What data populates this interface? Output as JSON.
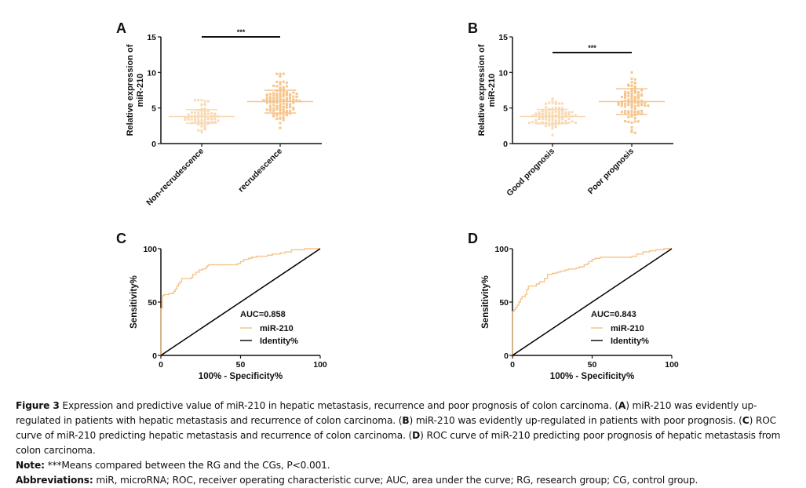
{
  "chart_data": [
    {
      "panel": "A",
      "type": "scatter",
      "subtype": "dot-plot",
      "ylabel": "Relative expression of miR-210",
      "ylim": [
        0,
        15
      ],
      "yticks": [
        0,
        5,
        10,
        15
      ],
      "categories": [
        "Non-recrudescence",
        "recrudescence"
      ],
      "series": [
        {
          "name": "Non-recrudescence",
          "mean": 3.8,
          "sd": 0.95,
          "min": 1.6,
          "max": 6.1,
          "n": 70,
          "color": "#f9d9b2"
        },
        {
          "name": "recrudescence",
          "mean": 5.9,
          "sd": 1.6,
          "min": 2.2,
          "max": 9.8,
          "n": 110,
          "color": "#f7c48a"
        }
      ],
      "significance": "***",
      "significance_y": 15
    },
    {
      "panel": "B",
      "type": "scatter",
      "subtype": "dot-plot",
      "ylabel": "Relative expression of miR-210",
      "ylim": [
        0,
        15
      ],
      "yticks": [
        0,
        5,
        10,
        15
      ],
      "categories": [
        "Good prognosis",
        "Poor prognosis"
      ],
      "series": [
        {
          "name": "Good prognosis",
          "mean": 3.8,
          "sd": 1.0,
          "min": 1.2,
          "max": 6.3,
          "n": 90,
          "color": "#f9d9b2"
        },
        {
          "name": "Poor prognosis",
          "mean": 5.9,
          "sd": 1.8,
          "min": 1.5,
          "max": 10.0,
          "n": 90,
          "color": "#f7c48a"
        }
      ],
      "significance": "***",
      "significance_y": 12.8
    },
    {
      "panel": "C",
      "type": "line",
      "subtype": "roc",
      "xlabel": "100% - Specificity%",
      "ylabel": "Sensitivity%",
      "xlim": [
        0,
        100
      ],
      "ylim": [
        0,
        100
      ],
      "xticks": [
        0,
        50,
        100
      ],
      "yticks": [
        0,
        50,
        100
      ],
      "auc_label": "AUC=0.858",
      "legend": [
        "miR-210",
        "Identity%"
      ],
      "legend_position": "bottom-right",
      "series": [
        {
          "name": "miR-210",
          "color": "#f7c48a",
          "x": [
            0,
            0,
            1,
            1,
            2,
            3,
            5,
            7,
            8,
            9,
            10,
            11,
            12,
            13,
            15,
            17,
            19,
            20,
            21,
            22,
            24,
            26,
            28,
            29,
            30,
            35,
            40,
            45,
            47,
            48,
            50,
            52,
            55,
            57,
            60,
            63,
            67,
            70,
            75,
            78,
            82,
            86,
            90,
            95,
            100
          ],
          "y": [
            0,
            44,
            44,
            56,
            57,
            57,
            58,
            58,
            60,
            62,
            65,
            67,
            69,
            72,
            72,
            72,
            73,
            76,
            76,
            78,
            80,
            81,
            82,
            84,
            85,
            85,
            85,
            85,
            85,
            86,
            88,
            90,
            91,
            92,
            93,
            93,
            94,
            95,
            96,
            97,
            99,
            99,
            100,
            100,
            100
          ]
        },
        {
          "name": "Identity%",
          "color": "#000000",
          "x": [
            0,
            100
          ],
          "y": [
            0,
            100
          ]
        }
      ]
    },
    {
      "panel": "D",
      "type": "line",
      "subtype": "roc",
      "xlabel": "100% - Specificity%",
      "ylabel": "Sensitivity%",
      "xlim": [
        0,
        100
      ],
      "ylim": [
        0,
        100
      ],
      "xticks": [
        0,
        50,
        100
      ],
      "yticks": [
        0,
        50,
        100
      ],
      "auc_label": "AUC=0.843",
      "legend": [
        "miR-210",
        "Identity%"
      ],
      "legend_position": "bottom-right",
      "series": [
        {
          "name": "miR-210",
          "color": "#f7c48a",
          "x": [
            0,
            0,
            1,
            2,
            3,
            4,
            5,
            6,
            7,
            8,
            9,
            10,
            12,
            14,
            15,
            17,
            19,
            20,
            22,
            25,
            28,
            30,
            33,
            35,
            38,
            40,
            42,
            45,
            47,
            48,
            50,
            52,
            55,
            60,
            65,
            70,
            75,
            78,
            82,
            86,
            90,
            95,
            100
          ],
          "y": [
            0,
            41,
            43,
            45,
            47,
            50,
            53,
            55,
            55,
            57,
            62,
            65,
            65,
            65,
            67,
            69,
            69,
            72,
            76,
            77,
            78,
            79,
            80,
            81,
            81,
            82,
            83,
            85,
            86,
            88,
            90,
            91,
            92,
            92,
            92,
            92,
            93,
            95,
            97,
            98,
            99,
            100,
            100
          ]
        },
        {
          "name": "Identity%",
          "color": "#000000",
          "x": [
            0,
            100
          ],
          "y": [
            0,
            100
          ]
        }
      ]
    }
  ],
  "panel_labels": [
    "A",
    "B",
    "C",
    "D"
  ],
  "caption": {
    "figure_label": "Figure 3",
    "text_1": " Expression and predictive value of miR-210 in hepatic metastasis, recurrence and poor prognosis of colon carcinoma. (",
    "ref_a": "A",
    "text_2": ") miR-210 was evidently up-regulated in patients with hepatic metastasis and recurrence of colon carcinoma. (",
    "ref_b": "B",
    "text_3": ") miR-210 was evidently up-regulated in patients with poor prognosis. (",
    "ref_c": "C",
    "text_4": ") ROC curve of miR-210 predicting hepatic metastasis and recurrence of colon carcinoma. (",
    "ref_d": "D",
    "text_5": ") ROC curve of miR-210 predicting poor prognosis of hepatic metastasis from colon carcinoma.",
    "note_label": "Note:",
    "note_text": " ***Means compared between the RG and the CGs, P<0.001.",
    "abbr_label": "Abbreviations:",
    "abbr_text": " miR, microRNA; ROC, receiver operating characteristic curve; AUC, area under the curve; RG, research group; CG, control group."
  }
}
